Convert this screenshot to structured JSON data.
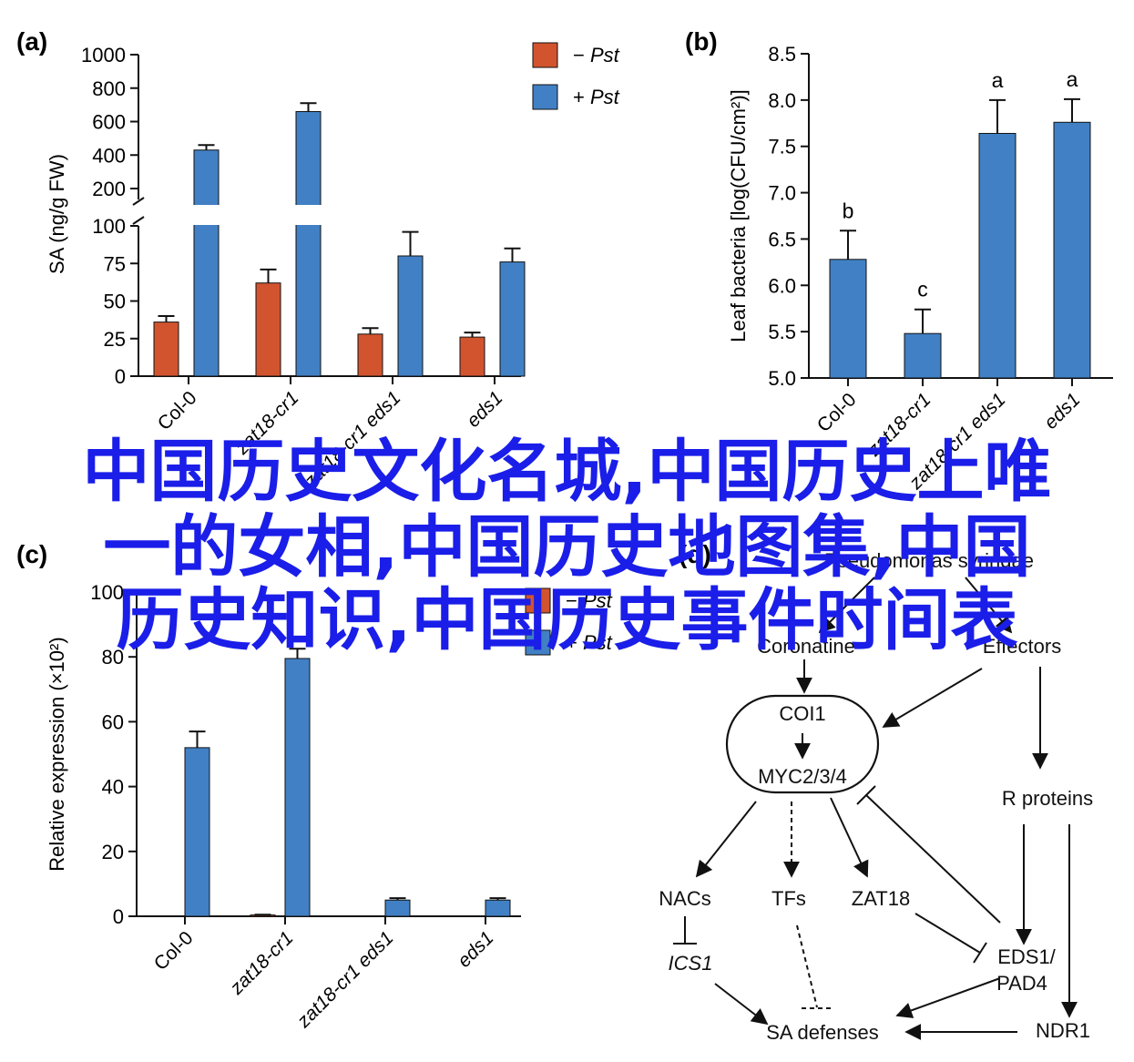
{
  "colors": {
    "minus_pst": "#d1542f",
    "plus_pst": "#4180c4",
    "axis": "#111111"
  },
  "chart_data": [
    {
      "panel": "a",
      "type": "bar",
      "ylabel": "SA (ng/g FW)",
      "categories": [
        "Col-0",
        "zat18-cr1",
        "zat18-cr1 eds1",
        "eds1"
      ],
      "series": [
        {
          "name": "−Pst",
          "values": [
            36,
            62,
            28,
            26
          ],
          "errors": [
            4,
            9,
            4,
            3
          ]
        },
        {
          "name": "+Pst",
          "values": [
            430,
            660,
            80,
            76
          ],
          "errors": [
            30,
            50,
            16,
            9
          ]
        }
      ],
      "y_break": [
        100,
        200
      ],
      "yticks_low": [
        "0",
        "25",
        "50",
        "75",
        "100"
      ],
      "yticks_high": [
        "200",
        "400",
        "600",
        "800",
        "1000"
      ],
      "legend_placement": "top-right"
    },
    {
      "panel": "b",
      "type": "bar",
      "ylabel": "Leaf bacteria [log(CFU/cm²)]",
      "categories": [
        "Col-0",
        "zat18-cr1",
        "zat18-cr1 eds1",
        "eds1"
      ],
      "values": [
        6.28,
        5.48,
        7.64,
        7.76
      ],
      "errors": [
        0.31,
        0.26,
        0.36,
        0.25
      ],
      "letters": [
        "b",
        "c",
        "a",
        "a"
      ],
      "ylim": [
        5.0,
        8.5
      ],
      "yticks": [
        "5.0",
        "5.5",
        "6.0",
        "6.5",
        "7.0",
        "7.5",
        "8.0",
        "8.5"
      ]
    },
    {
      "panel": "c",
      "type": "bar",
      "ylabel": "Relative expression (×10²)",
      "categories": [
        "Col-0",
        "zat18-cr1",
        "zat18-cr1 eds1",
        "eds1"
      ],
      "series": [
        {
          "name": "−Pst",
          "values": [
            0,
            0.4,
            0,
            0
          ],
          "errors": [
            0,
            0.1,
            0,
            0
          ]
        },
        {
          "name": "+Pst",
          "values": [
            52,
            79.5,
            5,
            5
          ],
          "errors": [
            5,
            3,
            0.6,
            0.6
          ]
        }
      ],
      "ylim": [
        0,
        100
      ],
      "yticks": [
        "0",
        "20",
        "40",
        "60",
        "80",
        "100"
      ],
      "legend_placement": "top-right"
    }
  ],
  "panel_labels": [
    "(a)",
    "(b)",
    "(c)",
    "(d)"
  ],
  "diagram": {
    "nodes": {
      "pst": "Pseudomonas syringae",
      "cor": "Coronatine",
      "eff": "Effectors",
      "coi": "COI1",
      "myc": "MYC2/3/4",
      "rp": "R proteins",
      "nacs": "NACs",
      "tfs": "TFs",
      "zat": "ZAT18",
      "ics": "ICS1",
      "eds_1": "EDS1/",
      "eds_2": "PAD4",
      "ndr": "NDR1",
      "sa": "SA defenses"
    }
  },
  "overlay_text": {
    "line1": "中国历史文化名城,中国历史上唯",
    "line2": "一的女相,中国历史地图集,中国",
    "line3": "历史知识,中国历史事件时间表"
  }
}
